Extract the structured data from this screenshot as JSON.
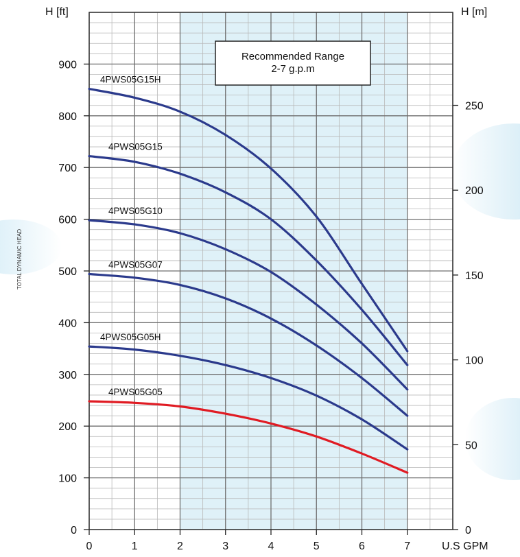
{
  "chart_data": {
    "type": "line",
    "side_label": "TOTAL DYNAMIC HEAD",
    "xlabel": "U.S GPM",
    "ylabel_left": "H [ft]",
    "ylabel_right": "H [m]",
    "xlim": [
      0,
      8
    ],
    "ylim_left": [
      0,
      1000
    ],
    "ylim_right": [
      0,
      304.8
    ],
    "x_ticks": [
      0,
      1,
      2,
      3,
      4,
      5,
      6,
      7
    ],
    "y_ticks_left": [
      0,
      100,
      200,
      300,
      400,
      500,
      600,
      700,
      800,
      900
    ],
    "y_ticks_right": [
      0,
      50,
      100,
      150,
      200,
      250
    ],
    "grid": true,
    "recommended_range": {
      "x": [
        2,
        7
      ],
      "label_line1": "Recommended Range",
      "label_line2": "2-7 g.p.m"
    },
    "colors": {
      "series": "#2b3a8c",
      "highlight": "#e01b23",
      "range_fill": "#dff1f8"
    },
    "series": [
      {
        "name": "4PWS05G15H",
        "color": "#2b3a8c",
        "x": [
          0,
          1,
          2,
          3,
          4,
          5,
          6,
          7
        ],
        "y": [
          852,
          835,
          808,
          763,
          698,
          605,
          475,
          345
        ]
      },
      {
        "name": "4PWS05G15",
        "color": "#2b3a8c",
        "x": [
          0,
          1,
          2,
          3,
          4,
          5,
          6,
          7
        ],
        "y": [
          722,
          711,
          688,
          652,
          600,
          520,
          425,
          318
        ]
      },
      {
        "name": "4PWS05G10",
        "color": "#2b3a8c",
        "x": [
          0,
          1,
          2,
          3,
          4,
          5,
          6,
          7
        ],
        "y": [
          598,
          590,
          573,
          542,
          498,
          435,
          360,
          271
        ]
      },
      {
        "name": "4PWS05G07",
        "color": "#2b3a8c",
        "x": [
          0,
          1,
          2,
          3,
          4,
          5,
          6,
          7
        ],
        "y": [
          494,
          487,
          473,
          447,
          408,
          356,
          293,
          220
        ]
      },
      {
        "name": "4PWS05G05H",
        "color": "#2b3a8c",
        "x": [
          0,
          1,
          2,
          3,
          4,
          5,
          6,
          7
        ],
        "y": [
          354,
          348,
          336,
          318,
          293,
          259,
          213,
          155
        ]
      },
      {
        "name": "4PWS05G05",
        "color": "#e01b23",
        "x": [
          0,
          1,
          2,
          3,
          4,
          5,
          6,
          7
        ],
        "y": [
          248,
          245,
          238,
          224,
          205,
          180,
          147,
          110
        ]
      }
    ]
  }
}
